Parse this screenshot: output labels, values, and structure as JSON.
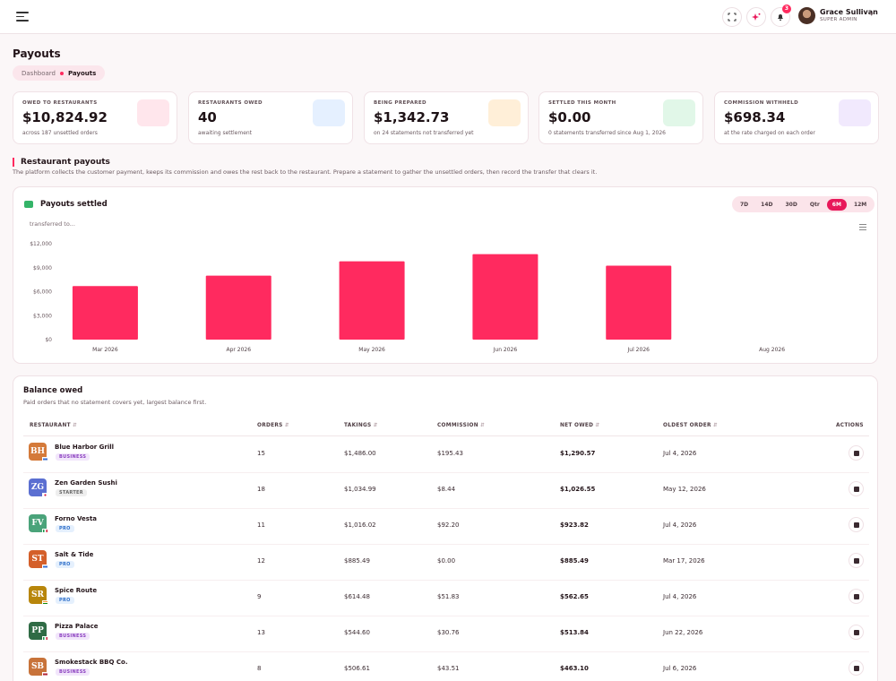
{
  "header": {
    "notification_count": "3",
    "user_name": "Grace Sullivan",
    "user_role": "SUPER ADMIN"
  },
  "page": {
    "title": "Payouts",
    "breadcrumb": {
      "parent": "Dashboard",
      "current": "Payouts"
    }
  },
  "stats": [
    {
      "label": "OWED TO RESTAURANTS",
      "value": "$10,824.92",
      "sub": "across 187 unsettled orders",
      "tint": "#ffd1dc"
    },
    {
      "label": "RESTAURANTS OWED",
      "value": "40",
      "sub": "awaiting settlement",
      "tint": "#cfe3ff"
    },
    {
      "label": "BEING PREPARED",
      "value": "$1,342.73",
      "sub": "on 24 statements not transferred yet",
      "tint": "#ffe2b8"
    },
    {
      "label": "SETTLED THIS MONTH",
      "value": "$0.00",
      "sub": "0 statements transferred since Aug 1, 2026",
      "tint": "#c9f0d6"
    },
    {
      "label": "COMMISSION WITHHELD",
      "value": "$698.34",
      "sub": "at the rate charged on each order",
      "tint": "#e6d7fb"
    }
  ],
  "section": {
    "title": "Restaurant payouts",
    "description": "The platform collects the customer payment, keeps its commission and owes the rest back to the restaurant. Prepare a statement to gather the unsettled orders, then record the transfer that clears it."
  },
  "chart_card": {
    "title": "Payouts settled",
    "subtitle": "transferred to...",
    "ranges": [
      "7D",
      "14D",
      "30D",
      "Qtr",
      "6M",
      "12M"
    ],
    "active_range": "6M"
  },
  "chart_data": {
    "type": "bar",
    "categories": [
      "Mar 2026",
      "Apr 2026",
      "May 2026",
      "Jun 2026",
      "Jul 2026",
      "Aug 2026"
    ],
    "values": [
      6700,
      8000,
      9800,
      10700,
      9250,
      0
    ],
    "ylim": [
      0,
      12000
    ],
    "yticks": [
      0,
      3000,
      6000,
      9000,
      12000
    ],
    "ytick_labels": [
      "$0",
      "$3,000",
      "$6,000",
      "$9,000",
      "$12,000"
    ],
    "bar_color": "#ff2a5f",
    "grid": false
  },
  "table": {
    "title": "Balance owed",
    "subtitle": "Paid orders that no statement covers yet, largest balance first.",
    "columns": [
      "RESTAURANT",
      "ORDERS",
      "TAKINGS",
      "COMMISSION",
      "NET OWED",
      "OLDEST ORDER",
      "ACTIONS"
    ],
    "rows": [
      {
        "initials": "BH",
        "name": "Blue Harbor Grill",
        "plan": "BUSINESS",
        "plan_kind": "business",
        "orders": "15",
        "takings": "$1,486.00",
        "commission": "$195.43",
        "net": "$1,290.57",
        "oldest": "Jul 4, 2026",
        "logo_color": "#d47a3a",
        "flag": "gr"
      },
      {
        "initials": "ZG",
        "name": "Zen Garden Sushi",
        "plan": "STARTER",
        "plan_kind": "starter",
        "orders": "18",
        "takings": "$1,034.99",
        "commission": "$8.44",
        "net": "$1,026.55",
        "oldest": "May 12, 2026",
        "logo_color": "#5b6fd1",
        "flag": "jp"
      },
      {
        "initials": "FV",
        "name": "Forno Vesta",
        "plan": "PRO",
        "plan_kind": "pro",
        "orders": "11",
        "takings": "$1,016.02",
        "commission": "$92.20",
        "net": "$923.82",
        "oldest": "Jul 4, 2026",
        "logo_color": "#4aa37a",
        "flag": "it"
      },
      {
        "initials": "ST",
        "name": "Salt & Tide",
        "plan": "PRO",
        "plan_kind": "pro",
        "orders": "12",
        "takings": "$885.49",
        "commission": "$0.00",
        "net": "$885.49",
        "oldest": "Mar 17, 2026",
        "logo_color": "#d45f2a",
        "flag": "gr"
      },
      {
        "initials": "SR",
        "name": "Spice Route",
        "plan": "PRO",
        "plan_kind": "pro",
        "orders": "9",
        "takings": "$614.48",
        "commission": "$51.83",
        "net": "$562.65",
        "oldest": "Jul 4, 2026",
        "logo_color": "#b8860b",
        "flag": "in"
      },
      {
        "initials": "PP",
        "name": "Pizza Palace",
        "plan": "BUSINESS",
        "plan_kind": "business",
        "orders": "13",
        "takings": "$544.60",
        "commission": "$30.76",
        "net": "$513.84",
        "oldest": "Jun 22, 2026",
        "logo_color": "#2f6b45",
        "flag": "it"
      },
      {
        "initials": "SB",
        "name": "Smokestack BBQ Co.",
        "plan": "BUSINESS",
        "plan_kind": "business",
        "orders": "8",
        "takings": "$506.61",
        "commission": "$43.51",
        "net": "$463.10",
        "oldest": "Jul 6, 2026",
        "logo_color": "#c8733a",
        "flag": "us"
      }
    ]
  }
}
